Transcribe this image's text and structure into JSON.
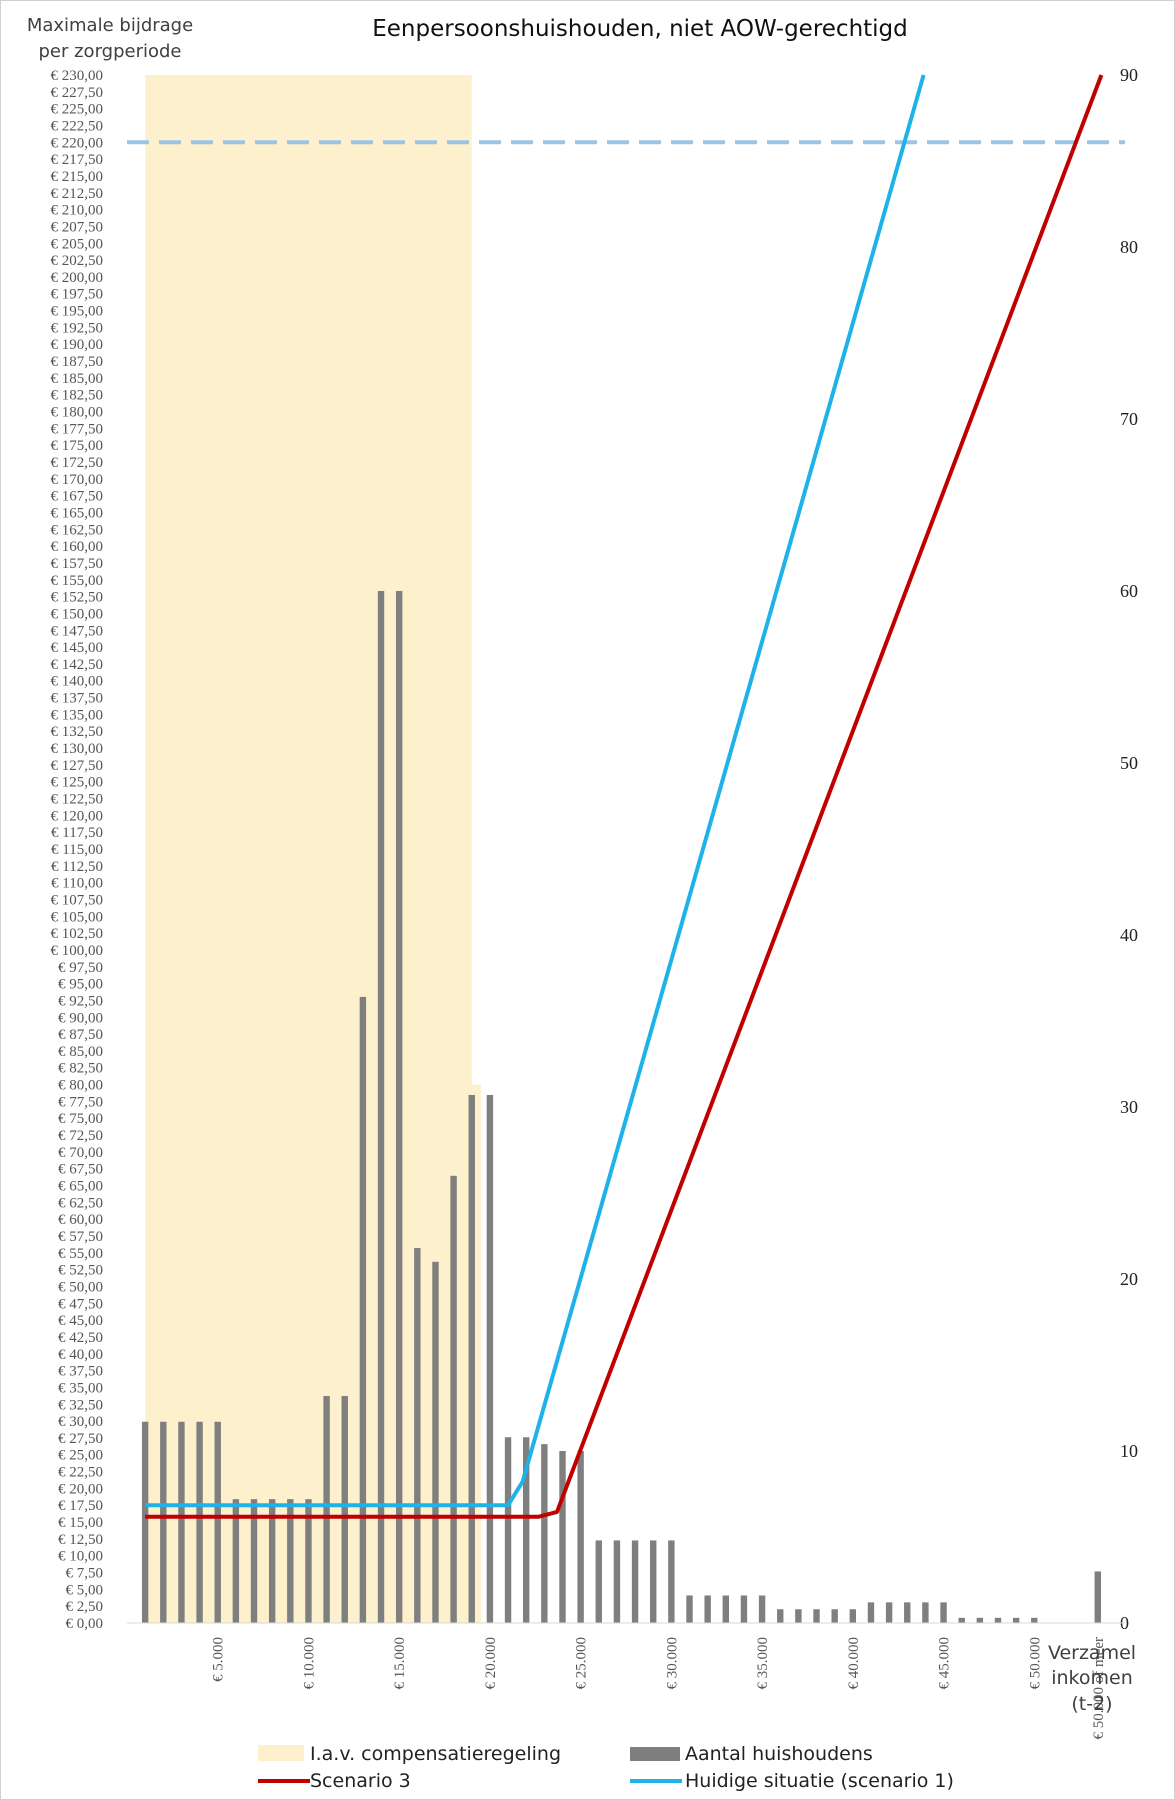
{
  "chart_data": {
    "type": "bar",
    "title": "Eenpersoonshuishouden, niet AOW-gerechtigd",
    "ylabel_line1": "Maximale bijdrage",
    "ylabel_line2": "per zorgperiode",
    "xlabel_line1": "Verzamel",
    "xlabel_line2": "inkomen",
    "xlabel_line3": "(t-2)",
    "ylim": [
      0,
      230
    ],
    "y_step": 2.5,
    "y2lim": [
      0,
      90
    ],
    "y2_step": 10,
    "xlim": [
      0,
      55000
    ],
    "x_tick_values": [
      5000,
      10000,
      15000,
      20000,
      25000,
      30000,
      35000,
      40000,
      45000,
      50000,
      53500
    ],
    "x_tick_labels": [
      "€ 5.000",
      "€ 10.000",
      "€ 15.000",
      "€ 20.000",
      "€ 25.000",
      "€ 30.000",
      "€ 35.000",
      "€ 40.000",
      "€ 45.000",
      "€ 50.000",
      "€ 50.000 of meer"
    ],
    "bars": {
      "name": "Aantal huishoudens",
      "color": "#7f7f7f",
      "axis": "right",
      "x": [
        1000,
        2000,
        3000,
        4000,
        5000,
        6000,
        7000,
        8000,
        9000,
        10000,
        11000,
        12000,
        13000,
        14000,
        15000,
        16000,
        17000,
        18000,
        19000,
        20000,
        21000,
        22000,
        23000,
        24000,
        25000,
        26000,
        27000,
        28000,
        29000,
        30000,
        31000,
        32000,
        33000,
        34000,
        35000,
        36000,
        37000,
        38000,
        39000,
        40000,
        41000,
        42000,
        43000,
        44000,
        45000,
        46000,
        47000,
        48000,
        49000,
        50000,
        53500
      ],
      "values": [
        11.7,
        11.7,
        11.7,
        11.7,
        11.7,
        7.2,
        7.2,
        7.2,
        7.2,
        7.2,
        13.2,
        13.2,
        36.4,
        60,
        60,
        21.8,
        21,
        26,
        30.7,
        30.7,
        10.8,
        10.8,
        10.4,
        10,
        10,
        4.8,
        4.8,
        4.8,
        4.8,
        4.8,
        1.6,
        1.6,
        1.6,
        1.6,
        1.6,
        0.8,
        0.8,
        0.8,
        0.8,
        0.8,
        1.2,
        1.2,
        1.2,
        1.2,
        1.2,
        0.3,
        0.3,
        0.3,
        0.3,
        0.3,
        3
      ]
    },
    "series": [
      {
        "name": "Scenario 3",
        "color": "#c00000",
        "x": [
          1000,
          22700,
          23700,
          53700
        ],
        "y": [
          15.8,
          15.8,
          16.5,
          230
        ]
      },
      {
        "name": "Huidige situatie (scenario 1)",
        "color": "#1fb2e8",
        "x": [
          1000,
          21000,
          21800,
          43900
        ],
        "y": [
          17.5,
          17.5,
          21,
          230
        ]
      }
    ],
    "reference_line": {
      "y": 220,
      "color": "#9dc3e6",
      "style": "dashed"
    },
    "highlight_band": {
      "name": "I.a.v. compensatieregeling",
      "color": "#fdf0cc",
      "x_start": 1000,
      "x_end_top": 19000,
      "x_end_bottom": 19500,
      "x_split_y": 80
    },
    "legend": {
      "placement": "bottom",
      "items": [
        {
          "label": "I.a.v. compensatieregeling",
          "kind": "band",
          "color": "#fdf0cc"
        },
        {
          "label": "Aantal huishoudens",
          "kind": "bar",
          "color": "#7f7f7f"
        },
        {
          "label": "Scenario 3",
          "kind": "line",
          "color": "#c00000"
        },
        {
          "label": "Huidige situatie (scenario 1)",
          "kind": "line",
          "color": "#1fb2e8"
        }
      ]
    }
  }
}
